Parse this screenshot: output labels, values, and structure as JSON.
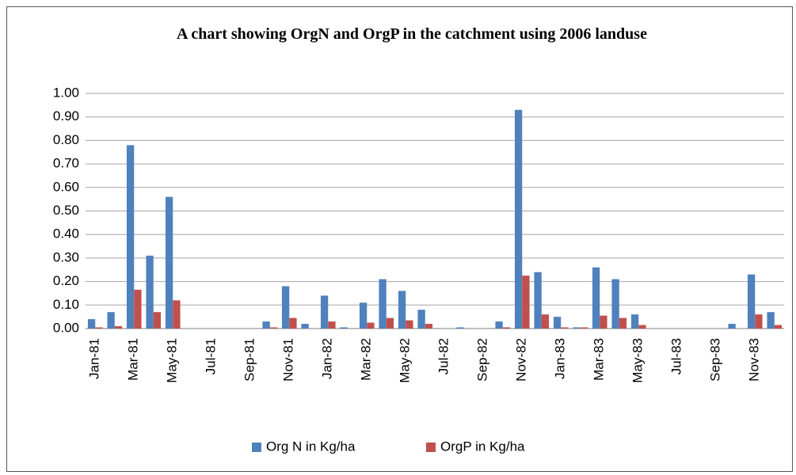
{
  "chart_data": {
    "type": "bar",
    "title": "A chart showing OrgN and OrgP in the catchment using 2006 landuse",
    "categories": [
      "Jan-81",
      null,
      "Mar-81",
      null,
      "May-81",
      null,
      "Jul-81",
      null,
      "Sep-81",
      null,
      "Nov-81",
      null,
      "Jan-82",
      null,
      "Mar-82",
      null,
      "May-82",
      null,
      "Jul-82",
      null,
      "Sep-82",
      null,
      "Nov-82",
      null,
      "Jan-83",
      null,
      "Mar-83",
      null,
      "May-83",
      null,
      "Jul-83",
      null,
      "Sep-83",
      null,
      "Nov-83",
      null
    ],
    "series": [
      {
        "name": "Org N in Kg/ha",
        "color": "#4f81bd",
        "values": [
          0.04,
          0.07,
          0.78,
          0.31,
          0.56,
          0,
          0,
          0,
          0,
          0.03,
          0.18,
          0.02,
          0.14,
          0.005,
          0.11,
          0.21,
          0.16,
          0.08,
          0,
          0.005,
          0,
          0.03,
          0.93,
          0.24,
          0.05,
          0.005,
          0.26,
          0.21,
          0.06,
          0,
          0,
          0,
          0,
          0.02,
          0.23,
          0.07
        ]
      },
      {
        "name": "OrgP in Kg/ha",
        "color": "#c0504d",
        "values": [
          0.005,
          0.01,
          0.165,
          0.07,
          0.12,
          0,
          0,
          0,
          0,
          0.005,
          0.045,
          0,
          0.03,
          0,
          0.025,
          0.045,
          0.035,
          0.02,
          0,
          0,
          0,
          0.005,
          0.225,
          0.06,
          0.005,
          0.005,
          0.055,
          0.045,
          0.015,
          0,
          0,
          0,
          0,
          0,
          0.06,
          0.015
        ]
      }
    ],
    "ylim": [
      0,
      1
    ],
    "yticks": [
      {
        "value": 0,
        "label": "0.00"
      },
      {
        "value": 0.1,
        "label": "0.10"
      },
      {
        "value": 0.2,
        "label": "0.20"
      },
      {
        "value": 0.3,
        "label": "0.30"
      },
      {
        "value": 0.4,
        "label": "0.40"
      },
      {
        "value": 0.5,
        "label": "0.50"
      },
      {
        "value": 0.6,
        "label": "0.60"
      },
      {
        "value": 0.7,
        "label": "0.70"
      },
      {
        "value": 0.8,
        "label": "0.80"
      },
      {
        "value": 0.9,
        "label": "0.90"
      },
      {
        "value": 1,
        "label": "1.00"
      }
    ],
    "grid": true,
    "legend": "bottom"
  }
}
